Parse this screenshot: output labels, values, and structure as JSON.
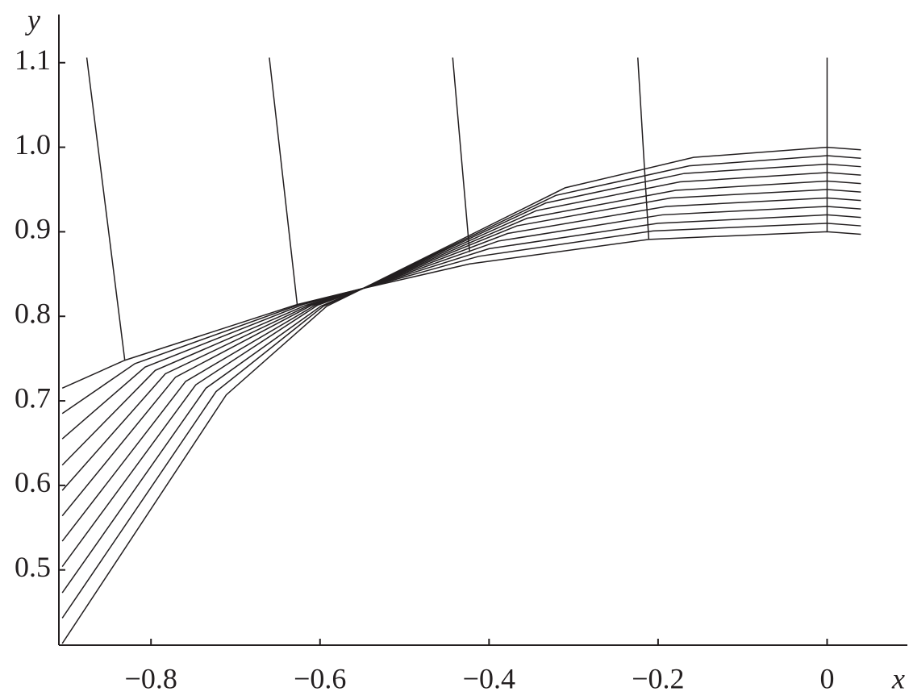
{
  "chart_data": {
    "type": "line",
    "xlabel": "x",
    "ylabel": "y",
    "color": "#231f20",
    "xlim": [
      -0.909,
      0.095
    ],
    "ylim": [
      0.411,
      1.157
    ],
    "xticks": [
      {
        "value": -0.8,
        "label": "−0.8"
      },
      {
        "value": -0.6,
        "label": "−0.6"
      },
      {
        "value": -0.4,
        "label": "−0.4"
      },
      {
        "value": -0.2,
        "label": "−0.2"
      },
      0
    ],
    "yticks": [
      0.5,
      0.6,
      0.7,
      0.8,
      0.9,
      {
        "value": 1,
        "label": "1.0"
      },
      1.1
    ],
    "series": [
      {
        "x": [
          -0.876,
          -0.831
        ],
        "values": [
          1.106,
          0.748
        ]
      },
      {
        "x": [
          -0.66,
          -0.627
        ],
        "values": [
          1.106,
          0.814
        ]
      },
      {
        "x": [
          -0.443,
          -0.423
        ],
        "values": [
          1.106,
          0.876
        ]
      },
      {
        "x": [
          -0.224,
          -0.211
        ],
        "values": [
          1.106,
          0.891
        ]
      },
      {
        "x": [
          0,
          0
        ],
        "values": [
          1.106,
          0.9
        ]
      },
      {
        "x": [
          -0.905,
          -0.831,
          -0.627,
          -0.549,
          -0.31,
          -0.158,
          0,
          0.04
        ],
        "values": [
          0.715,
          0.748,
          0.814,
          0.833,
          0.952,
          0.988,
          1.0,
          0.997
        ]
      },
      {
        "x": [
          -0.905,
          -0.819,
          -0.624,
          -0.549,
          -0.321,
          -0.163,
          0,
          0.04
        ],
        "values": [
          0.685,
          0.744,
          0.814,
          0.833,
          0.943,
          0.978,
          0.99,
          0.987
        ]
      },
      {
        "x": [
          -0.905,
          -0.807,
          -0.62,
          -0.549,
          -0.333,
          -0.169,
          0,
          0.04
        ],
        "values": [
          0.655,
          0.74,
          0.814,
          0.833,
          0.934,
          0.969,
          0.98,
          0.977
        ]
      },
      {
        "x": [
          -0.905,
          -0.795,
          -0.617,
          -0.549,
          -0.344,
          -0.174,
          0,
          0.04
        ],
        "values": [
          0.624,
          0.736,
          0.813,
          0.833,
          0.925,
          0.959,
          0.97,
          0.967
        ]
      },
      {
        "x": [
          -0.905,
          -0.783,
          -0.613,
          -0.549,
          -0.355,
          -0.179,
          0,
          0.04
        ],
        "values": [
          0.594,
          0.732,
          0.813,
          0.833,
          0.916,
          0.949,
          0.96,
          0.957
        ]
      },
      {
        "x": [
          -0.905,
          -0.771,
          -0.61,
          -0.549,
          -0.367,
          -0.185,
          0,
          0.04
        ],
        "values": [
          0.564,
          0.728,
          0.813,
          0.833,
          0.907,
          0.94,
          0.95,
          0.947
        ]
      },
      {
        "x": [
          -0.905,
          -0.759,
          -0.606,
          -0.549,
          -0.378,
          -0.19,
          0,
          0.04
        ],
        "values": [
          0.534,
          0.723,
          0.813,
          0.833,
          0.898,
          0.93,
          0.94,
          0.937
        ]
      },
      {
        "x": [
          -0.905,
          -0.747,
          -0.603,
          -0.549,
          -0.389,
          -0.195,
          0,
          0.04
        ],
        "values": [
          0.504,
          0.719,
          0.813,
          0.833,
          0.889,
          0.92,
          0.93,
          0.927
        ]
      },
      {
        "x": [
          -0.905,
          -0.735,
          -0.599,
          -0.549,
          -0.4,
          -0.2,
          0,
          0.04
        ],
        "values": [
          0.473,
          0.715,
          0.812,
          0.833,
          0.88,
          0.91,
          0.92,
          0.917
        ]
      },
      {
        "x": [
          -0.905,
          -0.723,
          -0.596,
          -0.549,
          -0.412,
          -0.206,
          0,
          0.04
        ],
        "values": [
          0.443,
          0.711,
          0.812,
          0.833,
          0.871,
          0.901,
          0.91,
          0.907
        ]
      },
      {
        "x": [
          -0.905,
          -0.711,
          -0.592,
          -0.549,
          -0.423,
          -0.211,
          0,
          0.04
        ],
        "values": [
          0.413,
          0.707,
          0.812,
          0.833,
          0.862,
          0.891,
          0.9,
          0.897
        ]
      }
    ]
  }
}
